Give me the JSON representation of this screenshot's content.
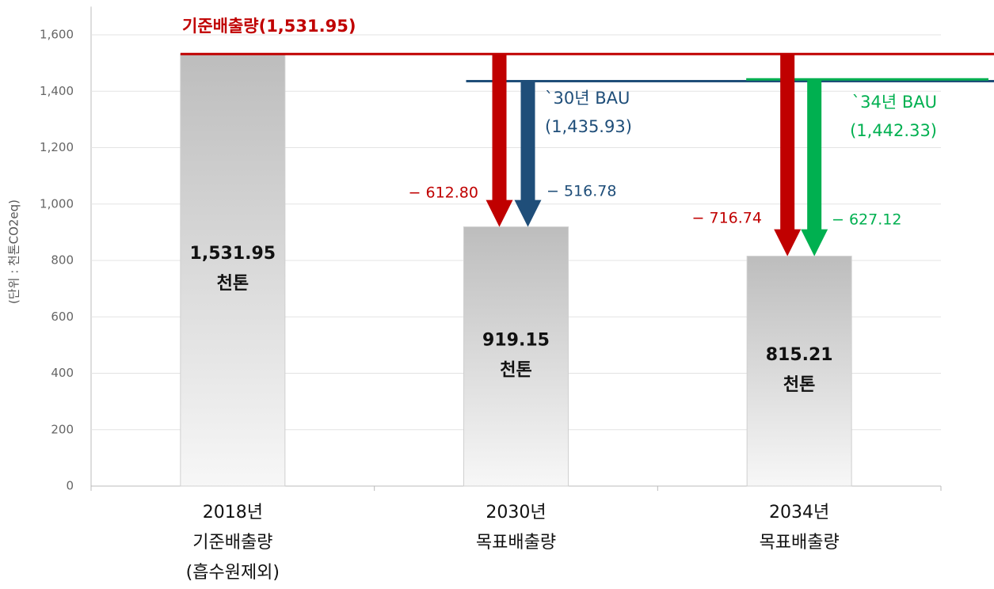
{
  "chart_data": {
    "type": "bar",
    "y_axis_label": "(단위 : 천톤CO2eq)",
    "categories": [
      [
        "2018년",
        "기준배출량",
        "(흡수원제외)"
      ],
      [
        "2030년",
        "목표배출량"
      ],
      [
        "2034년",
        "목표배출량"
      ]
    ],
    "values": [
      1531.95,
      919.15,
      815.21
    ],
    "value_labels": [
      "1,531.95",
      "919.15",
      "815.21"
    ],
    "value_unit": "천톤",
    "ylim": [
      0,
      1700
    ],
    "yticks": [
      0,
      200,
      400,
      600,
      800,
      {
        "value": 1000,
        "label": "1,000"
      },
      {
        "value": 1200,
        "label": "1,200"
      },
      {
        "value": 1400,
        "label": "1,400"
      },
      {
        "value": 1600,
        "label": "1,600"
      }
    ],
    "grid": true,
    "reference_lines": [
      {
        "label": [
          "기준배출량(1,531.95)"
        ],
        "value": 1531.95,
        "color": "#c00000"
      },
      {
        "label": [
          "`30년 BAU",
          "(1,435.93)"
        ],
        "value": 1435.93,
        "color": "#1f4e79"
      },
      {
        "label": [
          "`34년 BAU",
          "(1,442.33)"
        ],
        "value": 1442.33,
        "color": "#00b050"
      }
    ],
    "reductions": [
      {
        "value": -612.8,
        "label": "− 612.80",
        "color": "#c00000"
      },
      {
        "value": -516.78,
        "label": "− 516.78",
        "color": "#1f4e79"
      },
      {
        "value": -716.74,
        "label": "− 716.74",
        "color": "#c00000"
      },
      {
        "value": -627.12,
        "label": "− 627.12",
        "color": "#00b050"
      }
    ]
  }
}
